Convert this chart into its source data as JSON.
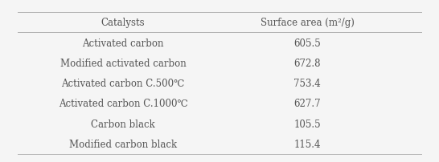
{
  "col1_header": "Catalysts",
  "col2_header": "Surface area (m²/g)",
  "rows": [
    [
      "Activated carbon",
      "605.5"
    ],
    [
      "Modified activated carbon",
      "672.8"
    ],
    [
      "Activated carbon C.500℃",
      "753.4"
    ],
    [
      "Activated carbon C.1000℃",
      "627.7"
    ],
    [
      "Carbon black",
      "105.5"
    ],
    [
      "Modified carbon black",
      "115.4"
    ]
  ],
  "bg_color": "#f5f5f5",
  "text_color": "#555555",
  "line_color": "#b0b0b0",
  "font_size": 8.5,
  "header_font_size": 8.5
}
